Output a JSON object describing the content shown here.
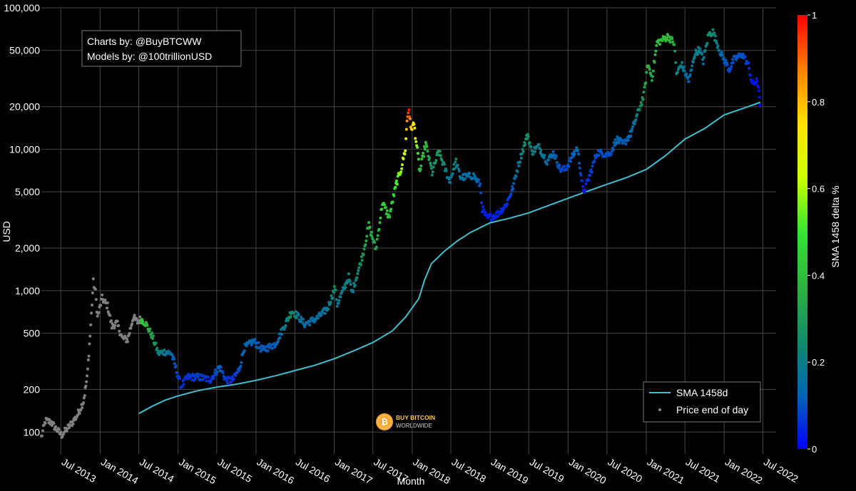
{
  "chart_data": {
    "type": "scatter",
    "title": "",
    "xlabel": "Month",
    "ylabel": "USD",
    "y_scale": "log",
    "ylim": [
      70,
      100000
    ],
    "xlim": [
      "2013-04-01",
      "2022-09-01"
    ],
    "grid": true,
    "background": "#000000",
    "credits": {
      "line1": "Charts by: @BuyBTCWW",
      "line2": "Models by: @100trillionUSD"
    },
    "x_ticks": [
      {
        "date": "2013-07-01",
        "label": "Jul 2013"
      },
      {
        "date": "2014-01-01",
        "label": "Jan 2014"
      },
      {
        "date": "2014-07-01",
        "label": "Jul 2014"
      },
      {
        "date": "2015-01-01",
        "label": "Jan 2015"
      },
      {
        "date": "2015-07-01",
        "label": "Jul 2015"
      },
      {
        "date": "2016-01-01",
        "label": "Jan 2016"
      },
      {
        "date": "2016-07-01",
        "label": "Jul 2016"
      },
      {
        "date": "2017-01-01",
        "label": "Jan 2017"
      },
      {
        "date": "2017-07-01",
        "label": "Jul 2017"
      },
      {
        "date": "2018-01-01",
        "label": "Jan 2018"
      },
      {
        "date": "2018-07-01",
        "label": "Jul 2018"
      },
      {
        "date": "2019-01-01",
        "label": "Jan 2019"
      },
      {
        "date": "2019-07-01",
        "label": "Jul 2019"
      },
      {
        "date": "2020-01-01",
        "label": "Jan 2020"
      },
      {
        "date": "2020-07-01",
        "label": "Jul 2020"
      },
      {
        "date": "2021-01-01",
        "label": "Jan 2021"
      },
      {
        "date": "2021-07-01",
        "label": "Jul 2021"
      },
      {
        "date": "2022-01-01",
        "label": "Jan 2022"
      },
      {
        "date": "2022-07-01",
        "label": "Jul 2022"
      }
    ],
    "y_ticks": [
      {
        "value": 100,
        "label": "100"
      },
      {
        "value": 200,
        "label": "200"
      },
      {
        "value": 500,
        "label": "500"
      },
      {
        "value": 1000,
        "label": "1,000"
      },
      {
        "value": 2000,
        "label": "2,000"
      },
      {
        "value": 5000,
        "label": "5,000"
      },
      {
        "value": 10000,
        "label": "10,000"
      },
      {
        "value": 20000,
        "label": "20,000"
      },
      {
        "value": 50000,
        "label": "50,000"
      },
      {
        "value": 100000,
        "label": "100,000"
      }
    ],
    "colorbar": {
      "title": "SMA 1458 delta %",
      "range": [
        0,
        1
      ],
      "ticks": [
        {
          "value": 0,
          "label": "0"
        },
        {
          "value": 0.2,
          "label": "0.2"
        },
        {
          "value": 0.4,
          "label": "0.4"
        },
        {
          "value": 0.6,
          "label": "0.6"
        },
        {
          "value": 0.8,
          "label": "0.8"
        },
        {
          "value": 1,
          "label": "1"
        }
      ],
      "colorscale": [
        "#0000ff",
        "#0066b3",
        "#118c6a",
        "#2fb33c",
        "#33e633",
        "#ccff00",
        "#ffe000",
        "#ff8000",
        "#ff0000"
      ]
    },
    "legend": {
      "position": "bottom-right",
      "items": [
        {
          "label": "SMA 1458d",
          "kind": "line",
          "color": "#3dbfd0"
        },
        {
          "label": "Price end of day",
          "kind": "marker",
          "color": "#808080"
        }
      ]
    },
    "series": [
      {
        "name": "SMA 1458d",
        "kind": "line",
        "color": "#3dbfd0",
        "points": [
          [
            "2014-07-01",
            135
          ],
          [
            "2014-09-01",
            152
          ],
          [
            "2014-11-01",
            168
          ],
          [
            "2015-01-01",
            180
          ],
          [
            "2015-04-01",
            196
          ],
          [
            "2015-07-01",
            208
          ],
          [
            "2015-10-01",
            218
          ],
          [
            "2016-01-01",
            232
          ],
          [
            "2016-04-01",
            250
          ],
          [
            "2016-07-01",
            272
          ],
          [
            "2016-10-01",
            296
          ],
          [
            "2017-01-01",
            330
          ],
          [
            "2017-04-01",
            375
          ],
          [
            "2017-07-01",
            430
          ],
          [
            "2017-10-01",
            520
          ],
          [
            "2017-12-01",
            650
          ],
          [
            "2018-02-01",
            880
          ],
          [
            "2018-03-01",
            1200
          ],
          [
            "2018-04-01",
            1550
          ],
          [
            "2018-06-01",
            1900
          ],
          [
            "2018-08-01",
            2250
          ],
          [
            "2018-10-01",
            2580
          ],
          [
            "2019-01-01",
            3020
          ],
          [
            "2019-04-01",
            3250
          ],
          [
            "2019-07-01",
            3550
          ],
          [
            "2019-10-01",
            4000
          ],
          [
            "2020-01-01",
            4500
          ],
          [
            "2020-04-01",
            5050
          ],
          [
            "2020-07-01",
            5650
          ],
          [
            "2020-10-01",
            6300
          ],
          [
            "2021-01-01",
            7200
          ],
          [
            "2021-04-01",
            9000
          ],
          [
            "2021-07-01",
            11800
          ],
          [
            "2021-10-01",
            14000
          ],
          [
            "2022-01-01",
            17500
          ],
          [
            "2022-04-01",
            19500
          ],
          [
            "2022-06-20",
            21500
          ]
        ]
      },
      {
        "name": "Price end of day",
        "kind": "markers",
        "marker_color_pre_sma": "#808080",
        "color_by": "SMA 1458 delta %",
        "anchors": [
          [
            "2013-04-01",
            92,
            null
          ],
          [
            "2013-04-20",
            120,
            null
          ],
          [
            "2013-05-15",
            118,
            null
          ],
          [
            "2013-06-10",
            105,
            null
          ],
          [
            "2013-07-05",
            95,
            null
          ],
          [
            "2013-08-10",
            110,
            null
          ],
          [
            "2013-09-15",
            130,
            null
          ],
          [
            "2013-10-15",
            165,
            null
          ],
          [
            "2013-11-01",
            240,
            null
          ],
          [
            "2013-11-15",
            480,
            null
          ],
          [
            "2013-11-30",
            1150,
            null
          ],
          [
            "2013-12-10",
            980,
            null
          ],
          [
            "2013-12-20",
            650,
            null
          ],
          [
            "2014-01-10",
            880,
            null
          ],
          [
            "2014-02-05",
            780,
            null
          ],
          [
            "2014-02-25",
            560,
            null
          ],
          [
            "2014-03-20",
            590,
            null
          ],
          [
            "2014-04-15",
            460,
            null
          ],
          [
            "2014-05-10",
            450,
            null
          ],
          [
            "2014-06-05",
            650,
            null
          ],
          [
            "2014-06-25",
            600,
            null
          ],
          [
            "2014-07-10",
            630,
            0.45
          ],
          [
            "2014-08-01",
            590,
            0.4
          ],
          [
            "2014-09-01",
            480,
            0.33
          ],
          [
            "2014-10-01",
            360,
            0.22
          ],
          [
            "2014-11-01",
            370,
            0.18
          ],
          [
            "2014-12-01",
            360,
            0.14
          ],
          [
            "2015-01-15",
            210,
            0.05
          ],
          [
            "2015-02-15",
            245,
            0.06
          ],
          [
            "2015-04-01",
            245,
            0.08
          ],
          [
            "2015-06-01",
            235,
            0.06
          ],
          [
            "2015-07-15",
            290,
            0.12
          ],
          [
            "2015-08-15",
            230,
            0.06
          ],
          [
            "2015-09-15",
            235,
            0.06
          ],
          [
            "2015-10-15",
            280,
            0.1
          ],
          [
            "2015-11-05",
            390,
            0.14
          ],
          [
            "2015-12-20",
            440,
            0.12
          ],
          [
            "2016-02-01",
            380,
            0.11
          ],
          [
            "2016-04-01",
            420,
            0.11
          ],
          [
            "2016-06-17",
            720,
            0.26
          ],
          [
            "2016-07-15",
            660,
            0.18
          ],
          [
            "2016-08-15",
            580,
            0.14
          ],
          [
            "2016-10-15",
            640,
            0.15
          ],
          [
            "2016-12-01",
            750,
            0.18
          ],
          [
            "2017-01-05",
            1050,
            0.25
          ],
          [
            "2017-01-15",
            800,
            0.18
          ],
          [
            "2017-03-10",
            1250,
            0.22
          ],
          [
            "2017-03-25",
            960,
            0.18
          ],
          [
            "2017-05-15",
            1800,
            0.28
          ],
          [
            "2017-06-12",
            2900,
            0.38
          ],
          [
            "2017-07-15",
            1950,
            0.3
          ],
          [
            "2017-08-15",
            4200,
            0.48
          ],
          [
            "2017-09-15",
            3300,
            0.4
          ],
          [
            "2017-10-20",
            5800,
            0.52
          ],
          [
            "2017-11-10",
            7200,
            0.58
          ],
          [
            "2017-11-30",
            10000,
            0.64
          ],
          [
            "2017-12-08",
            16000,
            0.86
          ],
          [
            "2017-12-17",
            19500,
            0.98
          ],
          [
            "2017-12-25",
            14000,
            0.8
          ],
          [
            "2018-01-10",
            15000,
            0.72
          ],
          [
            "2018-02-06",
            6900,
            0.4
          ],
          [
            "2018-03-05",
            11000,
            0.4
          ],
          [
            "2018-04-05",
            6800,
            0.24
          ],
          [
            "2018-05-05",
            9700,
            0.3
          ],
          [
            "2018-06-25",
            5900,
            0.16
          ],
          [
            "2018-07-25",
            8200,
            0.22
          ],
          [
            "2018-08-15",
            6300,
            0.16
          ],
          [
            "2018-10-15",
            6500,
            0.15
          ],
          [
            "2018-11-15",
            5600,
            0.11
          ],
          [
            "2018-11-25",
            3800,
            0.05
          ],
          [
            "2018-12-15",
            3250,
            0.03
          ],
          [
            "2019-02-01",
            3450,
            0.04
          ],
          [
            "2019-03-15",
            4000,
            0.05
          ],
          [
            "2019-04-15",
            5200,
            0.1
          ],
          [
            "2019-05-15",
            8000,
            0.18
          ],
          [
            "2019-06-26",
            12800,
            0.28
          ],
          [
            "2019-07-15",
            9500,
            0.2
          ],
          [
            "2019-08-15",
            10500,
            0.2
          ],
          [
            "2019-09-25",
            8200,
            0.14
          ],
          [
            "2019-10-26",
            9500,
            0.14
          ],
          [
            "2019-11-25",
            7200,
            0.09
          ],
          [
            "2019-12-20",
            7200,
            0.08
          ],
          [
            "2020-02-13",
            10300,
            0.14
          ],
          [
            "2020-03-13",
            4900,
            0.03
          ],
          [
            "2020-04-15",
            6800,
            0.07
          ],
          [
            "2020-05-15",
            9500,
            0.1
          ],
          [
            "2020-07-15",
            9200,
            0.09
          ],
          [
            "2020-08-15",
            11800,
            0.13
          ],
          [
            "2020-09-15",
            10800,
            0.11
          ],
          [
            "2020-10-21",
            12900,
            0.13
          ],
          [
            "2020-11-25",
            18500,
            0.22
          ],
          [
            "2020-12-20",
            24000,
            0.3
          ],
          [
            "2021-01-08",
            40000,
            0.38
          ],
          [
            "2021-01-28",
            32000,
            0.32
          ],
          [
            "2021-02-21",
            57000,
            0.42
          ],
          [
            "2021-03-15",
            59000,
            0.4
          ],
          [
            "2021-04-14",
            63000,
            0.4
          ],
          [
            "2021-05-12",
            56000,
            0.34
          ],
          [
            "2021-05-22",
            34000,
            0.2
          ],
          [
            "2021-06-15",
            40000,
            0.2
          ],
          [
            "2021-07-20",
            30000,
            0.12
          ],
          [
            "2021-08-15",
            47000,
            0.2
          ],
          [
            "2021-09-07",
            51000,
            0.2
          ],
          [
            "2021-09-25",
            42000,
            0.16
          ],
          [
            "2021-10-20",
            65000,
            0.26
          ],
          [
            "2021-11-09",
            67500,
            0.24
          ],
          [
            "2021-12-15",
            48000,
            0.14
          ],
          [
            "2022-01-25",
            36500,
            0.08
          ],
          [
            "2022-02-15",
            43000,
            0.1
          ],
          [
            "2022-03-28",
            47000,
            0.1
          ],
          [
            "2022-04-25",
            39000,
            0.07
          ],
          [
            "2022-05-12",
            29000,
            0.03
          ],
          [
            "2022-06-01",
            30000,
            0.03
          ],
          [
            "2022-06-12",
            27000,
            0.02
          ],
          [
            "2022-06-18",
            20500,
            0.0
          ]
        ]
      }
    ]
  },
  "watermark": {
    "line1": "BUY BITCOIN",
    "line2": "WORLDWIDE"
  }
}
